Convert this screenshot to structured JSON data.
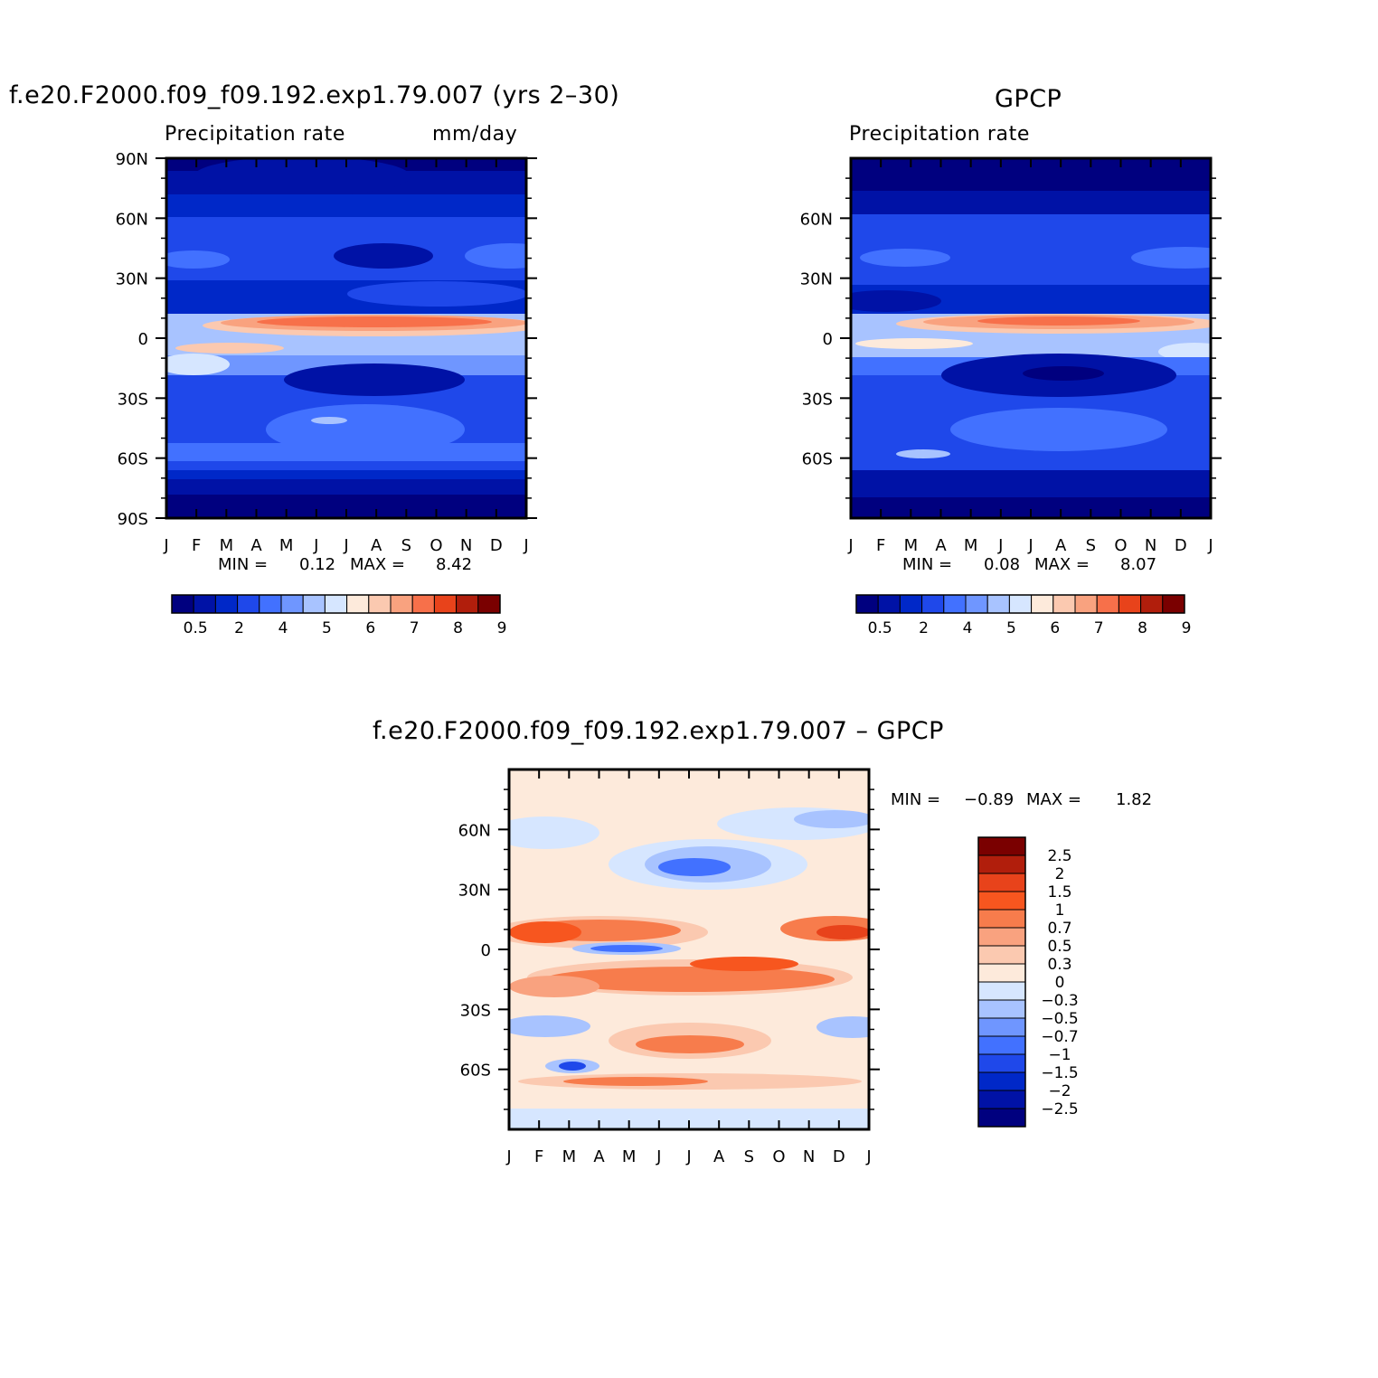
{
  "colors": {
    "abs_levels": [
      "#00007f",
      "#0012a6",
      "#0028c8",
      "#1f48ea",
      "#4271ff",
      "#6f96ff",
      "#a8c3ff",
      "#d6e6ff",
      "#fdeadb",
      "#fbc9b0",
      "#f9a27f",
      "#f7704a",
      "#e8431b",
      "#b11e0c",
      "#7a0000"
    ],
    "diff_levels": [
      "#7a0000",
      "#b11e0c",
      "#e8431b",
      "#f7561f",
      "#f77c4c",
      "#f9a27f",
      "#fbc9b0",
      "#fdeadb",
      "#d6e6ff",
      "#a8c3ff",
      "#6f96ff",
      "#4271ff",
      "#1f48ea",
      "#0028c8",
      "#0012a6",
      "#00007f"
    ]
  },
  "panels": {
    "model": {
      "title": "f.e20.F2000.f09_f09.192.exp1.79.007 (yrs 2–30)",
      "left_label": "Precipitation rate",
      "right_label": "mm/day",
      "y_ticks": [
        "90N",
        "60N",
        "30N",
        "0",
        "30S",
        "60S",
        "90S"
      ],
      "x_ticks": [
        "J",
        "F",
        "M",
        "A",
        "M",
        "J",
        "J",
        "A",
        "S",
        "O",
        "N",
        "D",
        "J"
      ],
      "min_label": "MIN =",
      "min_value": "0.12",
      "max_label": "MAX =",
      "max_value": "8.42",
      "colorbar_labels": [
        "0.5",
        "2",
        "4",
        "5",
        "6",
        "7",
        "8",
        "9"
      ]
    },
    "obs": {
      "title": "GPCP",
      "left_label": "Precipitation rate",
      "y_ticks": [
        "60N",
        "30N",
        "0",
        "30S",
        "60S"
      ],
      "x_ticks": [
        "J",
        "F",
        "M",
        "A",
        "M",
        "J",
        "J",
        "A",
        "S",
        "O",
        "N",
        "D",
        "J"
      ],
      "min_label": "MIN =",
      "min_value": "0.08",
      "max_label": "MAX =",
      "max_value": "8.07",
      "colorbar_labels": [
        "0.5",
        "2",
        "4",
        "5",
        "6",
        "7",
        "8",
        "9"
      ]
    },
    "diff": {
      "title": "f.e20.F2000.f09_f09.192.exp1.79.007 – GPCP",
      "y_ticks": [
        "60N",
        "30N",
        "0",
        "30S",
        "60S"
      ],
      "x_ticks": [
        "J",
        "F",
        "M",
        "A",
        "M",
        "J",
        "J",
        "A",
        "S",
        "O",
        "N",
        "D",
        "J"
      ],
      "min_label": "MIN =",
      "min_value": "−0.89",
      "max_label": "MAX =",
      "max_value": "1.82",
      "colorbar_labels": [
        "2.5",
        "2",
        "1.5",
        "1",
        "0.7",
        "0.5",
        "0.3",
        "0",
        "−0.3",
        "−0.5",
        "−0.7",
        "−1",
        "−1.5",
        "−2",
        "−2.5"
      ]
    }
  },
  "chart_data": [
    {
      "type": "heatmap",
      "title": "f.e20.F2000.f09_f09.192.exp1.79.007 (yrs 2–30)",
      "subtitle": "Precipitation rate",
      "units": "mm/day",
      "x_categories": [
        "J",
        "F",
        "M",
        "A",
        "M",
        "J",
        "J",
        "A",
        "S",
        "O",
        "N",
        "D",
        "J"
      ],
      "y_ticks": [
        "90N",
        "60N",
        "30N",
        "0",
        "30S",
        "60S",
        "90S"
      ],
      "ylim": [
        -90,
        90
      ],
      "contour_levels": [
        0.5,
        1,
        2,
        3,
        4,
        4.5,
        5,
        5.5,
        6,
        6.5,
        7,
        7.5,
        8,
        9
      ],
      "min": 0.12,
      "max": 8.42
    },
    {
      "type": "heatmap",
      "title": "GPCP",
      "subtitle": "Precipitation rate",
      "x_categories": [
        "J",
        "F",
        "M",
        "A",
        "M",
        "J",
        "J",
        "A",
        "S",
        "O",
        "N",
        "D",
        "J"
      ],
      "y_ticks": [
        "60N",
        "30N",
        "0",
        "30S",
        "60S"
      ],
      "ylim": [
        -90,
        90
      ],
      "contour_levels": [
        0.5,
        1,
        2,
        3,
        4,
        4.5,
        5,
        5.5,
        6,
        6.5,
        7,
        7.5,
        8,
        9
      ],
      "min": 0.08,
      "max": 8.07
    },
    {
      "type": "heatmap",
      "title": "f.e20.F2000.f09_f09.192.exp1.79.007 – GPCP",
      "x_categories": [
        "J",
        "F",
        "M",
        "A",
        "M",
        "J",
        "J",
        "A",
        "S",
        "O",
        "N",
        "D",
        "J"
      ],
      "y_ticks": [
        "60N",
        "30N",
        "0",
        "30S",
        "60S"
      ],
      "ylim": [
        -90,
        90
      ],
      "contour_levels": [
        -2.5,
        -2,
        -1.5,
        -1,
        -0.7,
        -0.5,
        -0.3,
        0,
        0.3,
        0.5,
        0.7,
        1,
        1.5,
        2,
        2.5
      ],
      "min": -0.89,
      "max": 1.82
    }
  ]
}
